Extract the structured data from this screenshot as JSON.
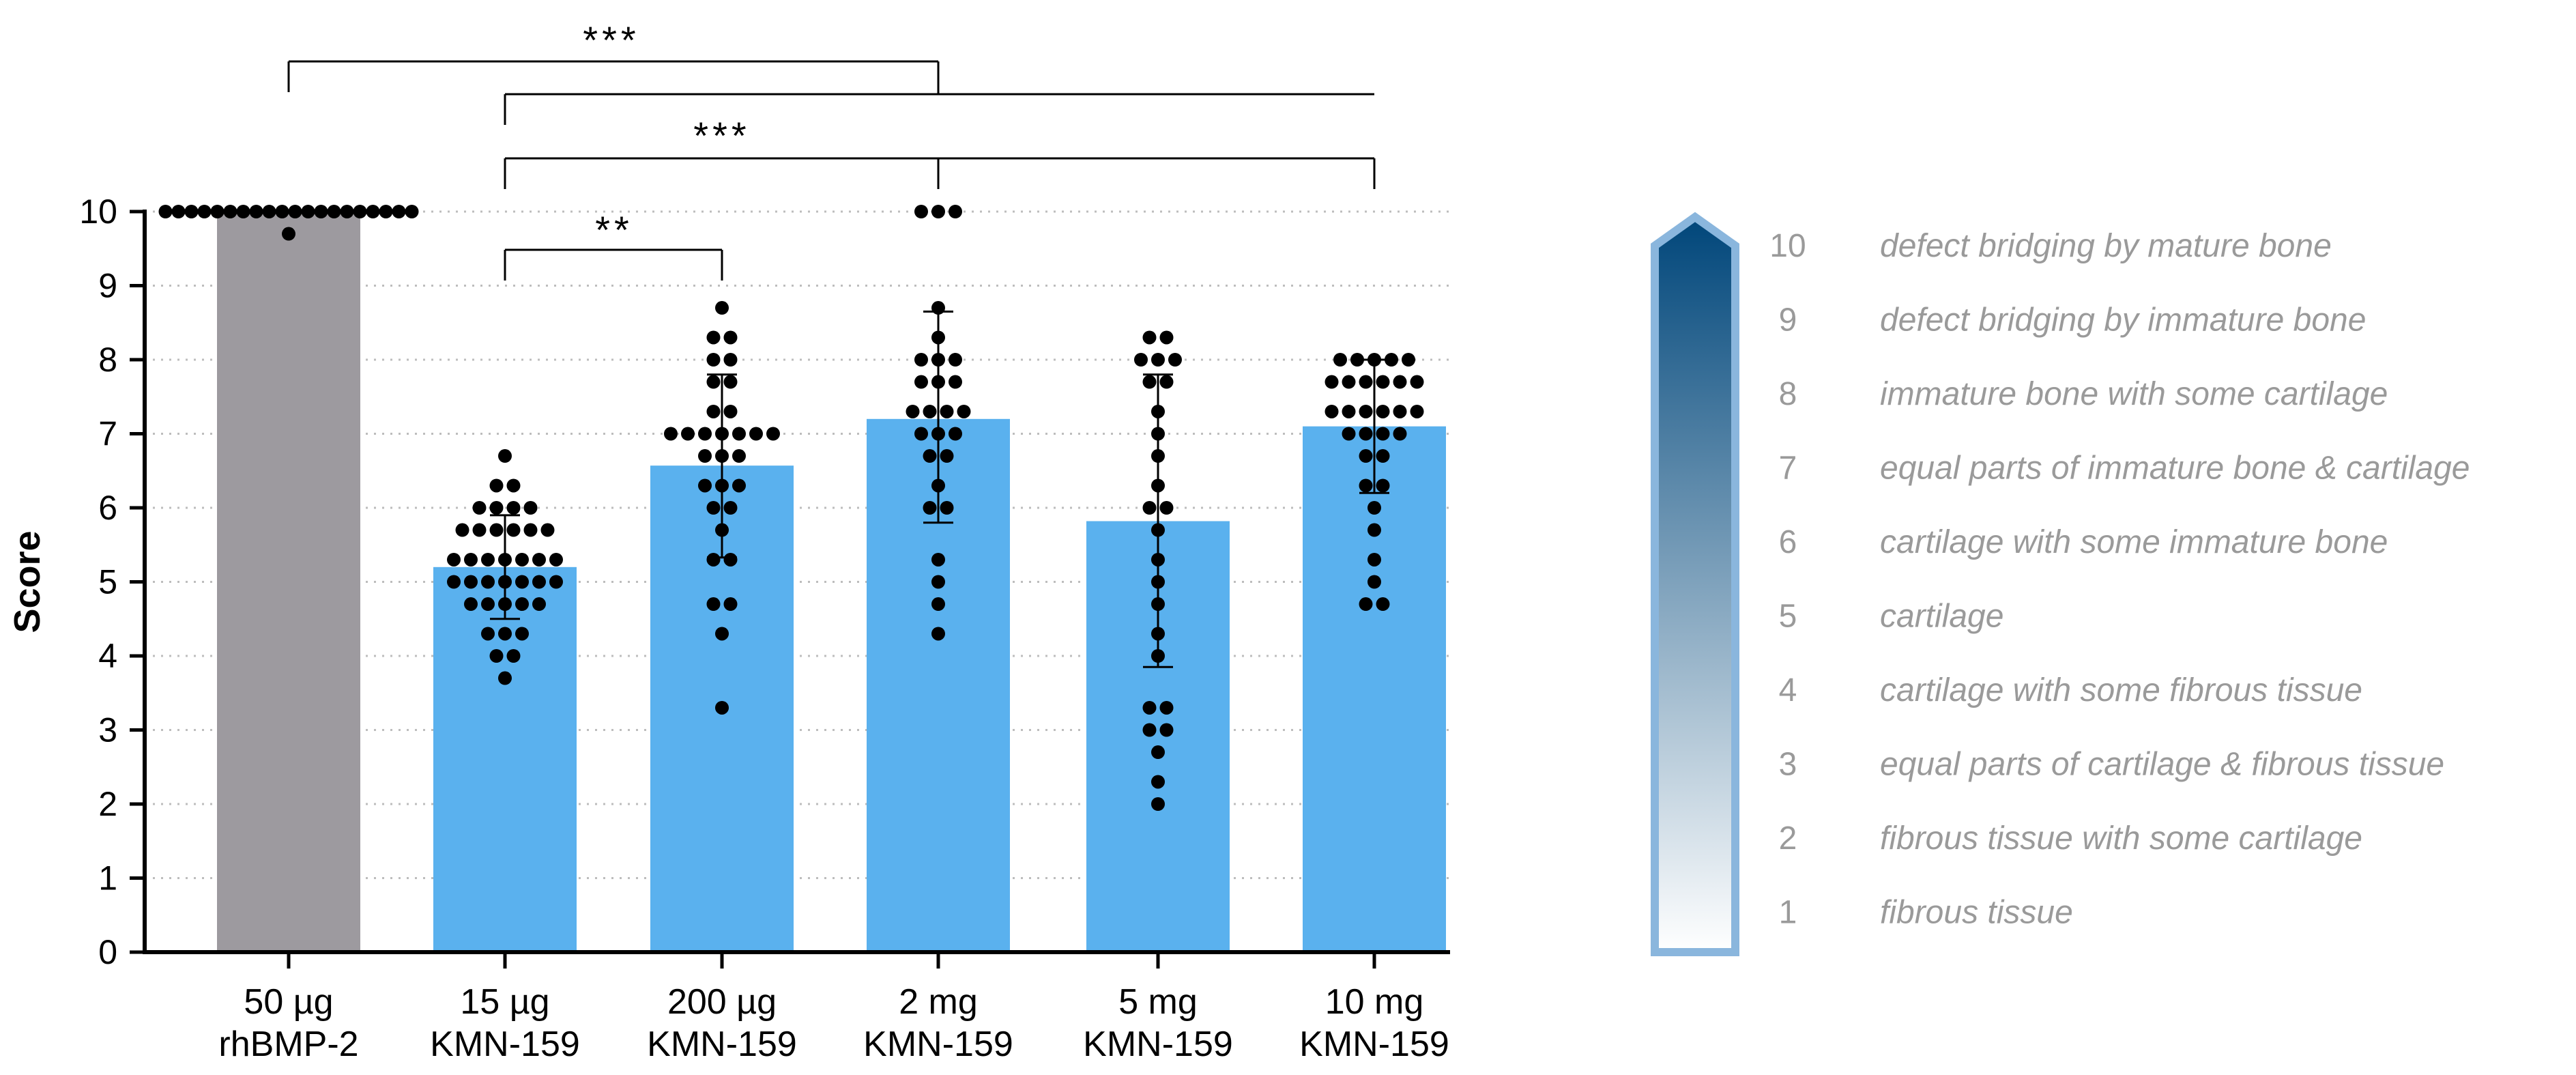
{
  "chart_data": {
    "type": "bar",
    "ylabel": "Score",
    "ylim": [
      0,
      10
    ],
    "yticks": [
      "0",
      "1",
      "2",
      "3",
      "4",
      "5",
      "6",
      "7",
      "8",
      "9",
      "10"
    ],
    "grid": "horizontal dotted",
    "categories": [
      {
        "line1": "50 µg",
        "line2": "rhBMP-2"
      },
      {
        "line1": "15 µg",
        "line2": "KMN-159"
      },
      {
        "line1": "200 µg",
        "line2": "KMN-159"
      },
      {
        "line1": "2 mg",
        "line2": "KMN-159"
      },
      {
        "line1": "5 mg",
        "line2": "KMN-159"
      },
      {
        "line1": "10 mg",
        "line2": "KMN-159"
      }
    ],
    "values": [
      10.0,
      5.2,
      6.57,
      7.2,
      5.82,
      7.1
    ],
    "error_bars": [
      null,
      [
        4.5,
        5.9
      ],
      [
        5.33,
        7.8
      ],
      [
        5.8,
        8.65
      ],
      [
        3.85,
        7.8
      ],
      [
        6.2,
        8.0
      ]
    ],
    "bar_colors": [
      "#9d9a9f",
      "#5ab1ee",
      "#5ab1ee",
      "#5ab1ee",
      "#5ab1ee",
      "#5ab1ee"
    ],
    "points": [
      [
        10,
        10,
        10,
        10,
        10,
        10,
        10,
        10,
        10,
        10,
        10,
        10,
        10,
        10,
        10,
        10,
        10,
        10,
        10,
        10,
        9.7
      ],
      [
        6.7,
        6.3,
        6.3,
        6.0,
        6.0,
        6.0,
        6.0,
        5.7,
        5.7,
        5.7,
        5.7,
        5.7,
        5.7,
        5.3,
        5.3,
        5.3,
        5.3,
        5.3,
        5.3,
        5.3,
        5.0,
        5.0,
        5.0,
        5.0,
        5.0,
        5.0,
        5.0,
        4.7,
        4.7,
        4.7,
        4.7,
        4.7,
        4.3,
        4.3,
        4.3,
        4.0,
        4.0,
        3.7
      ],
      [
        8.7,
        8.3,
        8.3,
        8.0,
        8.0,
        7.7,
        7.7,
        7.3,
        7.3,
        7.0,
        7.0,
        7.0,
        7.0,
        7.0,
        7.0,
        7.0,
        6.7,
        6.7,
        6.7,
        6.3,
        6.3,
        6.3,
        6.0,
        6.0,
        5.7,
        5.3,
        5.3,
        4.7,
        4.7,
        4.3,
        3.3
      ],
      [
        10,
        10,
        10,
        8.7,
        8.3,
        8.0,
        8.0,
        8.0,
        7.7,
        7.7,
        7.7,
        7.3,
        7.3,
        7.3,
        7.3,
        7.0,
        7.0,
        7.0,
        6.7,
        6.7,
        6.3,
        6.0,
        6.0,
        5.3,
        5.0,
        4.7,
        4.3
      ],
      [
        8.3,
        8.3,
        8.0,
        8.0,
        8.0,
        7.7,
        7.7,
        7.3,
        7.0,
        6.7,
        6.3,
        6.0,
        6.0,
        5.7,
        5.3,
        5.0,
        4.7,
        4.3,
        4.0,
        3.3,
        3.3,
        3.0,
        3.0,
        2.7,
        2.3,
        2.0
      ],
      [
        8.0,
        8.0,
        8.0,
        8.0,
        8.0,
        7.7,
        7.7,
        7.7,
        7.7,
        7.7,
        7.7,
        7.3,
        7.3,
        7.3,
        7.3,
        7.3,
        7.3,
        7.0,
        7.0,
        7.0,
        7.0,
        6.7,
        6.7,
        6.3,
        6.3,
        6.0,
        5.7,
        5.3,
        5.0,
        4.7,
        4.7
      ]
    ],
    "significance": [
      {
        "from": 0,
        "to": 3,
        "label": "***"
      },
      {
        "from": 1,
        "to": 5,
        "label": ""
      },
      {
        "from": 1,
        "to": 5,
        "mid": 3,
        "label": "***"
      },
      {
        "from": 1,
        "to": 2,
        "label": "**"
      }
    ],
    "scale_legend": {
      "gradient_top": "#00467a",
      "gradient_bottom": "#ffffff",
      "border": "#8ab6dd",
      "items": [
        {
          "num": "10",
          "desc": "defect bridging by mature bone"
        },
        {
          "num": "9",
          "desc": "defect bridging by immature bone"
        },
        {
          "num": "8",
          "desc": "immature bone with some cartilage"
        },
        {
          "num": "7",
          "desc": "equal parts of immature bone & cartilage"
        },
        {
          "num": "6",
          "desc": "cartilage with some immature bone"
        },
        {
          "num": "5",
          "desc": "cartilage"
        },
        {
          "num": "4",
          "desc": "cartilage with some fibrous tissue"
        },
        {
          "num": "3",
          "desc": "equal parts of cartilage & fibrous tissue"
        },
        {
          "num": "2",
          "desc": "fibrous tissue with some cartilage"
        },
        {
          "num": "1",
          "desc": "fibrous tissue"
        }
      ]
    }
  }
}
